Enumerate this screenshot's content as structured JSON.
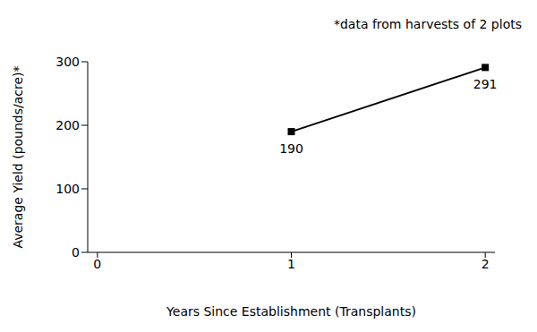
{
  "chart_data": {
    "type": "line",
    "annotation": "*data from harvests of 2 plots",
    "xlabel": "Years Since Establishment (Transplants)",
    "ylabel": "Average Yield (pounds/acre)*",
    "x": [
      1,
      2
    ],
    "values": [
      190,
      291
    ],
    "xlim": [
      -0.05,
      2.05
    ],
    "xticks": [
      0,
      1,
      2
    ],
    "ylim": [
      0,
      300
    ],
    "yticks": [
      0,
      100,
      200,
      300
    ],
    "grid": false,
    "data_labels": true,
    "color": "#000000",
    "marker": "square",
    "line_style": "solid"
  }
}
